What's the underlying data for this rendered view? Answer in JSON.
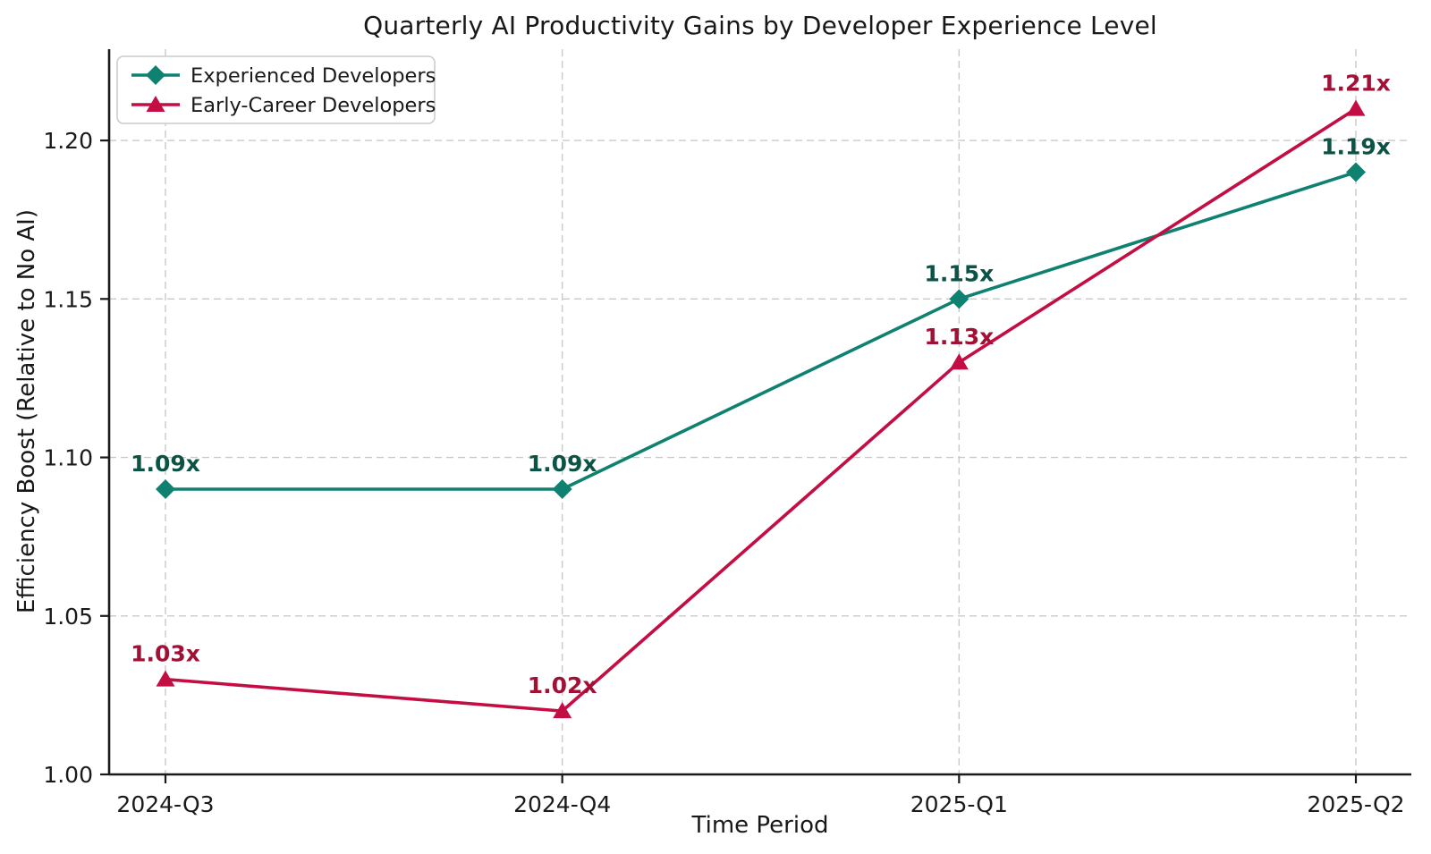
{
  "chart_data": {
    "type": "line",
    "title": "Quarterly AI Productivity Gains by Developer Experience Level",
    "xlabel": "Time Period",
    "ylabel": "Efficiency Boost (Relative to No AI)",
    "categories": [
      "2024-Q3",
      "2024-Q4",
      "2025-Q1",
      "2025-Q2"
    ],
    "ytick_values": [
      1.0,
      1.05,
      1.1,
      1.15,
      1.2
    ],
    "ytick_labels": [
      "1.00",
      "1.05",
      "1.10",
      "1.15",
      "1.20"
    ],
    "ylim": [
      1.0,
      1.2288
    ],
    "grid": true,
    "grid_style": "dashed",
    "grid_color": "#c9c9c9",
    "axis_color": "#1a1a1a",
    "background_color": "#ffffff",
    "legend_position": "upper left",
    "series": [
      {
        "name": "Experienced Developers",
        "color": "#0f8170",
        "label_color": "#0b5345",
        "marker": "diamond",
        "values": [
          1.09,
          1.09,
          1.15,
          1.19
        ],
        "point_labels": [
          "1.09x",
          "1.09x",
          "1.15x",
          "1.19x"
        ]
      },
      {
        "name": "Early-Career Developers",
        "color": "#c30e44",
        "label_color": "#9f1135",
        "marker": "triangle",
        "values": [
          1.03,
          1.02,
          1.13,
          1.21
        ],
        "point_labels": [
          "1.03x",
          "1.02x",
          "1.13x",
          "1.21x"
        ]
      }
    ]
  }
}
